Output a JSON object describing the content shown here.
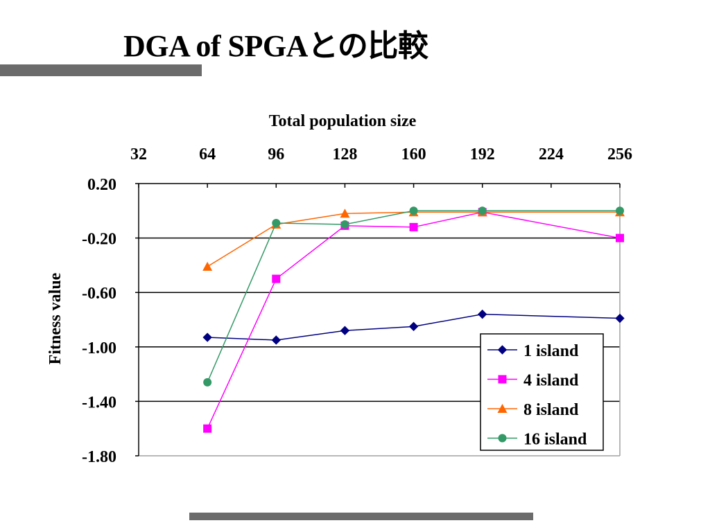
{
  "title": "DGA of SPGAとの比較",
  "colors": {
    "decor_bar": "#6b6b6b",
    "series": [
      "#000080",
      "#ff00ff",
      "#ff6600",
      "#339966"
    ]
  },
  "chart_data": {
    "type": "line",
    "title": "",
    "xlabel": "Total population size",
    "ylabel": "Fitness value",
    "x_axis_position": "top",
    "xlim": [
      32,
      256
    ],
    "xticks": [
      32,
      64,
      96,
      128,
      160,
      192,
      224,
      256
    ],
    "ylim": [
      -1.8,
      0.2
    ],
    "yticks": [
      0.2,
      -0.2,
      -0.6,
      -1.0,
      -1.4,
      -1.8
    ],
    "ytick_labels": [
      "0.20",
      "-0.20",
      "-0.60",
      "-1.00",
      "-1.40",
      "-1.80"
    ],
    "grid": "horizontal",
    "legend_position": "bottom-right",
    "x": [
      64,
      96,
      128,
      160,
      192,
      256
    ],
    "series": [
      {
        "name": "1 island",
        "marker": "diamond",
        "color": "#000080",
        "values": [
          -0.93,
          -0.95,
          -0.88,
          -0.85,
          -0.76,
          -0.79
        ]
      },
      {
        "name": "4 island",
        "marker": "square",
        "color": "#ff00ff",
        "values": [
          -1.6,
          -0.5,
          -0.11,
          -0.12,
          -0.01,
          -0.2
        ]
      },
      {
        "name": "8 island",
        "marker": "triangle",
        "color": "#ff6600",
        "values": [
          -0.41,
          -0.1,
          -0.02,
          -0.01,
          -0.01,
          -0.01
        ]
      },
      {
        "name": "16 island",
        "marker": "circle",
        "color": "#339966",
        "values": [
          -1.26,
          -0.09,
          -0.1,
          0.0,
          0.0,
          0.0
        ]
      }
    ]
  }
}
